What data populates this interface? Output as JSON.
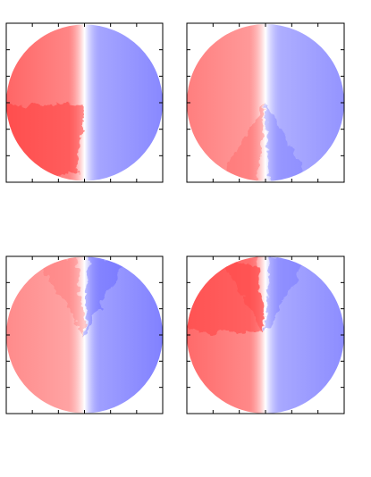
{
  "figure": {
    "panels": [
      {
        "id": "top-left",
        "left_color": "#ff3b3b",
        "right_color": "#5a5aff",
        "turbulent_wedge": "lower-left",
        "plume": "none"
      },
      {
        "id": "top-right",
        "left_color": "#ff5a5a",
        "right_color": "#6a6aff",
        "turbulent_wedge": "none",
        "plume": "lower"
      },
      {
        "id": "bottom-left",
        "left_color": "#ff6a6a",
        "right_color": "#5050ff",
        "turbulent_wedge": "none",
        "plume": "upper"
      },
      {
        "id": "bottom-right",
        "left_color": "#ff4040",
        "right_color": "#6060ff",
        "turbulent_wedge": "upper-left",
        "plume": "upper"
      }
    ]
  }
}
